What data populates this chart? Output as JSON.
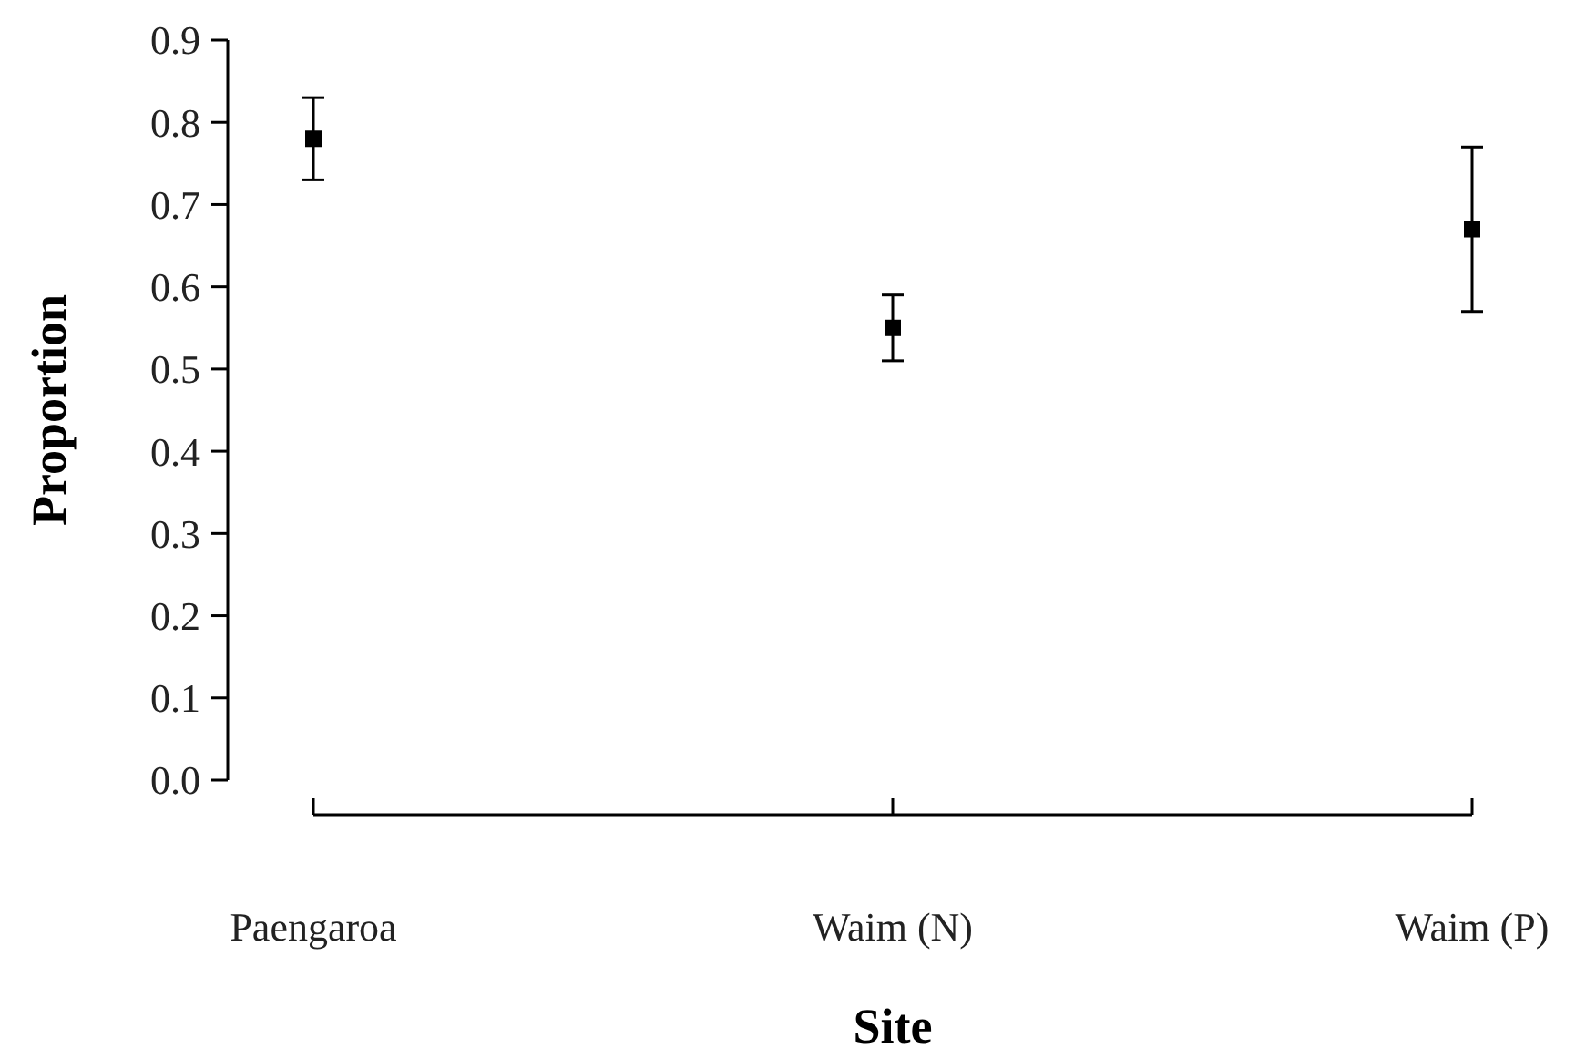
{
  "chart_data": {
    "type": "scatter",
    "xlabel": "Site",
    "ylabel": "Proportion",
    "categories": [
      "Paengaroa",
      "Waim (N)",
      "Waim (P)"
    ],
    "values": [
      0.78,
      0.55,
      0.67
    ],
    "errors": [
      0.05,
      0.04,
      0.1
    ],
    "color": "#000000",
    "marker": "square",
    "ylim": [
      0,
      0.9
    ],
    "yticks": [
      {
        "value": 0,
        "label": "0.0"
      },
      0.1,
      0.2,
      0.3,
      0.4,
      0.5,
      0.6,
      0.7,
      0.8,
      0.9
    ],
    "grid": false
  }
}
